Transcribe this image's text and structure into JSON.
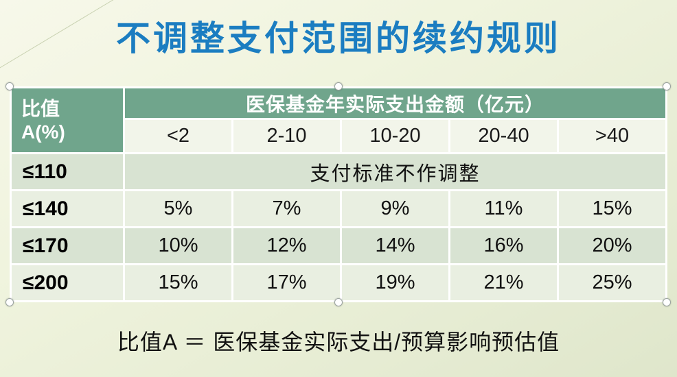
{
  "title": "不调整支付范围的续约规则",
  "colors": {
    "title_blue": "#1b7dc1",
    "header_green": "#70a58c",
    "band_dark": "#d8e3d2",
    "band_light": "#e9efe1",
    "subhead_bg": "#f2f5ea",
    "background": "#eef2dd"
  },
  "table": {
    "corner_header": {
      "line1": "比值",
      "line2": "A(%)"
    },
    "group_header": "医保基金年实际支出金额（亿元）",
    "col_headers": [
      "<2",
      "2-10",
      "10-20",
      "20-40",
      ">40"
    ],
    "rows": [
      {
        "label": "≤110",
        "span_text": "支付标准不作调整"
      },
      {
        "label": "≤140",
        "cells": [
          "5%",
          "7%",
          "9%",
          "11%",
          "15%"
        ]
      },
      {
        "label": "≤170",
        "cells": [
          "10%",
          "12%",
          "14%",
          "16%",
          "20%"
        ]
      },
      {
        "label": "≤200",
        "cells": [
          "15%",
          "17%",
          "19%",
          "21%",
          "25%"
        ]
      }
    ]
  },
  "footnote": "比值A ＝ 医保基金实际支出/预算影响预估值"
}
